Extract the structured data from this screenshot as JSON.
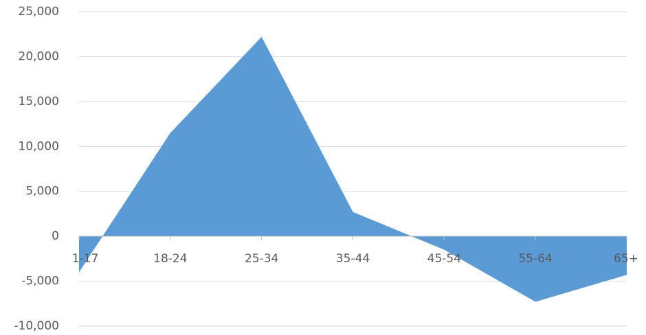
{
  "chart_data": {
    "type": "area",
    "categories": [
      "1-17",
      "18-24",
      "25-34",
      "35-44",
      "45-54",
      "55-64",
      "65+"
    ],
    "series": [
      {
        "values": [
          -4000,
          11500,
          22200,
          2700,
          -1500,
          -7300,
          -4300
        ]
      }
    ],
    "ylim": [
      -10000,
      25000
    ],
    "yticks": [
      -10000,
      -5000,
      0,
      5000,
      10000,
      15000,
      20000,
      25000
    ],
    "ytick_labels": [
      "-10,000",
      "-5,000",
      "0",
      "5,000",
      "10,000",
      "15,000",
      "20,000",
      "25,000"
    ],
    "title": "",
    "xlabel": "",
    "ylabel": "",
    "grid": true,
    "legend": "none",
    "colors": {
      "area": "#5b9bd5",
      "grid": "#d9d9d9",
      "axis": "#bfbfbf",
      "text": "#595959"
    }
  }
}
